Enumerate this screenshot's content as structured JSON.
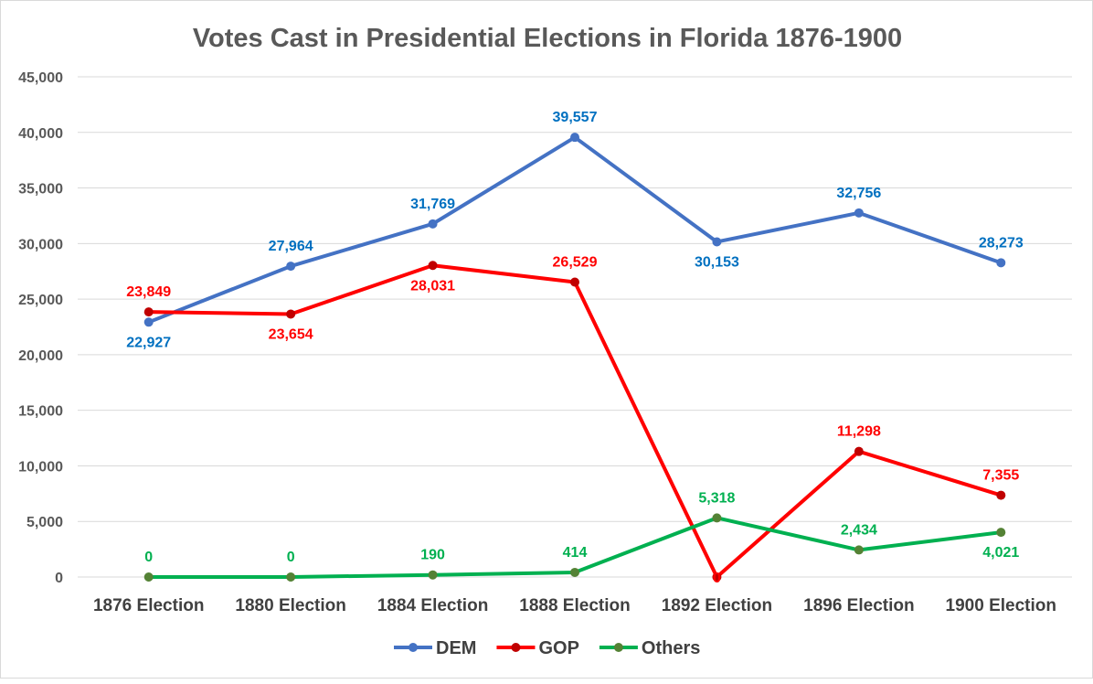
{
  "chart_data": {
    "type": "line",
    "title": "Votes Cast in Presidential Elections in Florida 1876-1900",
    "xlabel": "",
    "ylabel": "",
    "categories": [
      "1876 Election",
      "1880 Election",
      "1884 Election",
      "1888 Election",
      "1892 Election",
      "1896 Election",
      "1900 Election"
    ],
    "ylim": [
      0,
      45000
    ],
    "yticks": [
      0,
      5000,
      10000,
      15000,
      20000,
      25000,
      30000,
      35000,
      40000,
      45000
    ],
    "ytick_labels": [
      "0",
      "5,000",
      "10,000",
      "15,000",
      "20,000",
      "25,000",
      "30,000",
      "35,000",
      "40,000",
      "45,000"
    ],
    "grid": true,
    "legend": "bottom",
    "series": [
      {
        "name": "DEM",
        "color": "#4472C4",
        "marker_color": "#4472C4",
        "label_color": "#0070C0",
        "values": [
          22927,
          27964,
          31769,
          39557,
          30153,
          32756,
          28273
        ],
        "labels": [
          "22,927",
          "27,964",
          "31,769",
          "39,557",
          "30,153",
          "32,756",
          "28,273"
        ],
        "label_positions": [
          "below",
          "above",
          "above",
          "above",
          "below",
          "above",
          "above"
        ]
      },
      {
        "name": "GOP",
        "color": "#FF0000",
        "marker_color": "#C00000",
        "label_color": "#FF0000",
        "values": [
          23849,
          23654,
          28031,
          26529,
          0,
          11298,
          7355
        ],
        "labels": [
          "23,849",
          "23,654",
          "28,031",
          "26,529",
          "0",
          "11,298",
          "7,355"
        ],
        "label_positions": [
          "above",
          "below",
          "below",
          "above",
          "center",
          "above",
          "above"
        ]
      },
      {
        "name": "Others",
        "color": "#00B050",
        "marker_color": "#548235",
        "label_color": "#00B050",
        "values": [
          0,
          0,
          190,
          414,
          5318,
          2434,
          4021
        ],
        "labels": [
          "0",
          "0",
          "190",
          "414",
          "5,318",
          "2,434",
          "4,021"
        ],
        "label_positions": [
          "above",
          "above",
          "above",
          "above",
          "above",
          "above",
          "below"
        ]
      }
    ]
  }
}
